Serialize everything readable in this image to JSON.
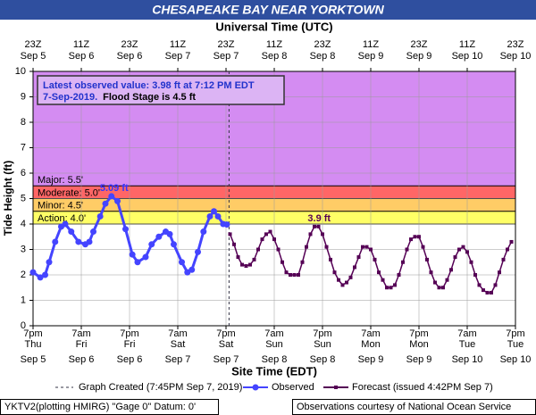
{
  "chart_data": {
    "type": "line",
    "title": "CHESAPEAKE BAY NEAR YORKTOWN",
    "x2_label": "Universal Time (UTC)",
    "x_label": "Site Time (EDT)",
    "y_label": "Tide Height (ft)",
    "xlim": [
      0,
      120
    ],
    "ylim": [
      0,
      10
    ],
    "yticks": [
      0,
      1,
      2,
      3,
      4,
      5,
      6,
      7,
      8,
      9,
      10
    ],
    "xticks": [
      {
        "value": 0,
        "label": "7pm"
      },
      {
        "value": 12,
        "label": "7am"
      },
      {
        "value": 24,
        "label": "7pm"
      },
      {
        "value": 36,
        "label": "7am"
      },
      {
        "value": 48,
        "label": "7pm"
      },
      {
        "value": 60,
        "label": "7am"
      },
      {
        "value": 72,
        "label": "7pm"
      },
      {
        "value": 84,
        "label": "7am"
      },
      {
        "value": 96,
        "label": "7pm"
      },
      {
        "value": 108,
        "label": "7am"
      },
      {
        "value": 120,
        "label": "7pm"
      }
    ],
    "xtick_days": [
      "Thu",
      "Fri",
      "Fri",
      "Sat",
      "Sat",
      "Sun",
      "Sun",
      "Mon",
      "Mon",
      "Tue",
      "Tue"
    ],
    "xtick_dates": [
      "Sep 5",
      "Sep 6",
      "Sep 6",
      "Sep 7",
      "Sep 7",
      "Sep 8",
      "Sep 8",
      "Sep 9",
      "Sep 9",
      "Sep 10",
      "Sep 10"
    ],
    "x2ticks": [
      {
        "value": 0,
        "label": "23Z"
      },
      {
        "value": 12,
        "label": "11Z"
      },
      {
        "value": 24,
        "label": "23Z"
      },
      {
        "value": 36,
        "label": "11Z"
      },
      {
        "value": 48,
        "label": "23Z"
      },
      {
        "value": 60,
        "label": "11Z"
      },
      {
        "value": 72,
        "label": "23Z"
      },
      {
        "value": 84,
        "label": "11Z"
      },
      {
        "value": 96,
        "label": "23Z"
      },
      {
        "value": 108,
        "label": "11Z"
      },
      {
        "value": 120,
        "label": "23Z"
      }
    ],
    "x2tick_dates": [
      "Sep 5",
      "Sep 6",
      "Sep 6",
      "Sep 7",
      "Sep 7",
      "Sep 8",
      "Sep 8",
      "Sep 9",
      "Sep 9",
      "Sep 10",
      "Sep 10"
    ],
    "grid": true,
    "flood_stages": [
      {
        "label": "Action:  4.0'",
        "value": 4.0,
        "color": "#ffff66"
      },
      {
        "label": "Minor:  4.5'",
        "value": 4.5,
        "color": "#ffcc66"
      },
      {
        "label": "Moderate:  5.0'",
        "value": 5.0,
        "color": "#ff6666"
      },
      {
        "label": "Major:  5.5'",
        "value": 5.5,
        "color": "#d48cf2"
      }
    ],
    "latest_observed": [
      "Latest observed value: 3.98 ft at 7:12 PM EDT",
      "7-Sep-2019."
    ],
    "flood_stage_note": "Flood Stage is 4.5 ft",
    "graph_created": {
      "label": "Graph Created (7:45PM Sep 7, 2019)",
      "x": 48.75
    },
    "annotations": [
      {
        "text": "5.09 ft",
        "x": 19.5,
        "y": 5.09,
        "color": "#3333ff"
      },
      {
        "text": "3.9 ft",
        "x": 70.5,
        "y": 3.9,
        "color": "#550055"
      }
    ],
    "series": [
      {
        "name": "Observed",
        "color": "#4444ff",
        "marker": "circle",
        "x": [
          0,
          1.8,
          3,
          4,
          5.5,
          7,
          8,
          9.5,
          11.3,
          13,
          14,
          15,
          16.7,
          18,
          19.5,
          21,
          23,
          24.7,
          26,
          28,
          29.5,
          31.3,
          33,
          34,
          35,
          37,
          38.4,
          39.5,
          41,
          42.4,
          44,
          45,
          46,
          47.3,
          48.2
        ],
        "values": [
          2.1,
          1.9,
          2.0,
          2.5,
          3.3,
          3.9,
          4.0,
          3.7,
          3.3,
          3.2,
          3.3,
          3.7,
          4.3,
          4.8,
          5.09,
          4.9,
          3.8,
          2.8,
          2.5,
          2.7,
          3.2,
          3.5,
          3.7,
          3.6,
          3.2,
          2.5,
          2.1,
          2.2,
          2.9,
          3.7,
          4.3,
          4.5,
          4.3,
          4.0,
          3.98
        ]
      },
      {
        "name": "Forecast (issued 4:42PM Sep 7)",
        "color": "#550055",
        "marker": "square",
        "x": [
          49,
          50,
          51,
          52,
          53,
          54,
          55,
          56,
          57,
          58,
          59,
          60,
          61,
          62,
          63,
          64,
          65,
          66,
          67,
          68,
          69,
          70,
          71,
          72,
          73,
          74,
          75,
          76,
          77,
          78,
          79,
          80,
          81,
          82,
          83,
          84,
          85,
          86,
          87,
          88,
          89,
          90,
          91,
          92,
          93,
          94,
          95,
          96,
          97,
          98,
          99,
          100,
          101,
          102,
          103,
          104,
          105,
          106,
          107,
          108,
          109,
          110,
          111,
          112,
          113,
          114,
          115,
          116,
          117,
          118,
          119
        ],
        "values": [
          3.6,
          3.2,
          2.7,
          2.4,
          2.35,
          2.4,
          2.6,
          3.0,
          3.4,
          3.6,
          3.7,
          3.4,
          3.0,
          2.5,
          2.1,
          2.0,
          2.0,
          2.0,
          2.5,
          3.1,
          3.6,
          3.9,
          3.9,
          3.6,
          3.1,
          2.6,
          2.1,
          1.8,
          1.6,
          1.7,
          1.9,
          2.3,
          2.7,
          3.1,
          3.1,
          3.0,
          2.6,
          2.1,
          1.8,
          1.5,
          1.5,
          1.6,
          2.0,
          2.5,
          3.0,
          3.4,
          3.5,
          3.5,
          3.1,
          2.6,
          2.1,
          1.7,
          1.5,
          1.5,
          1.8,
          2.2,
          2.7,
          3.0,
          3.1,
          2.9,
          2.5,
          2.0,
          1.6,
          1.4,
          1.3,
          1.3,
          1.6,
          2.1,
          2.6,
          3.0,
          3.3
        ]
      }
    ],
    "footer_left": "YKTV2(plotting HMIRG) \"Gage 0\" Datum: 0'",
    "footer_right": "Observations courtesy of National Ocean Service"
  }
}
